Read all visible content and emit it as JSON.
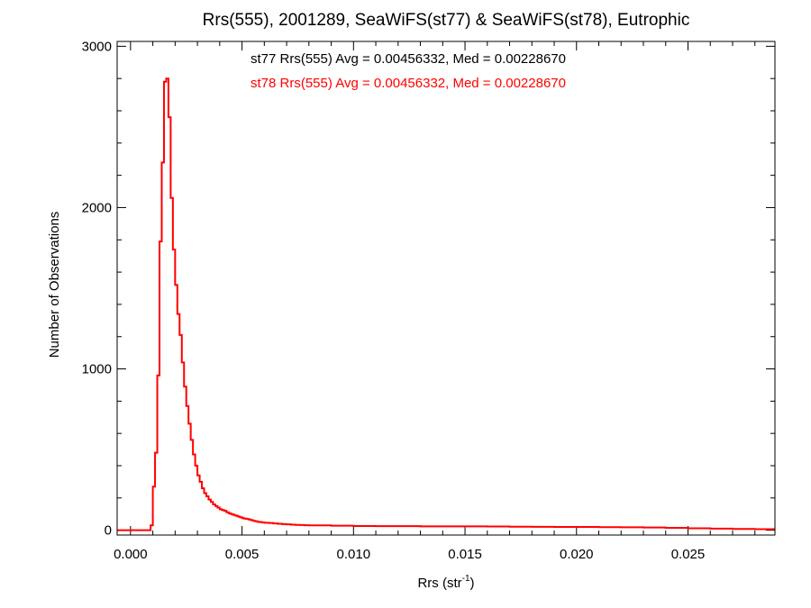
{
  "chart_data": {
    "type": "line",
    "title": "Rrs(555), 2001289, SeaWiFS(st77) & SeaWiFS(st78), Eutrophic",
    "xlabel_main": "Rrs (str",
    "xlabel_sup": "-1",
    "xlabel_close": ")",
    "ylabel": "Number of Observations",
    "xlim": [
      -0.0006,
      0.0289
    ],
    "ylim": [
      -30,
      3030
    ],
    "x_ticks": [
      {
        "value": 0.0,
        "label": "0.000"
      },
      {
        "value": 0.005,
        "label": "0.005"
      },
      {
        "value": 0.01,
        "label": "0.010"
      },
      {
        "value": 0.015,
        "label": "0.015"
      },
      {
        "value": 0.02,
        "label": "0.020"
      },
      {
        "value": 0.025,
        "label": "0.025"
      }
    ],
    "y_ticks": [
      {
        "value": 0,
        "label": "0"
      },
      {
        "value": 1000,
        "label": "1000"
      },
      {
        "value": 2000,
        "label": "2000"
      },
      {
        "value": 3000,
        "label": "3000"
      }
    ],
    "x_minor_step": 0.001,
    "y_minor_step": 200,
    "legend": [
      {
        "text": "st77 Rrs(555) Avg = 0.00456332, Med = 0.00228670",
        "color": "#000000"
      },
      {
        "text": "st78 Rrs(555) Avg = 0.00456332, Med = 0.00228670",
        "color": "#ff0000"
      }
    ],
    "series": [
      {
        "color": "#ff0000",
        "bin_width": 0.0001,
        "x": [
          0.0009,
          0.001,
          0.0011,
          0.0012,
          0.0013,
          0.0014,
          0.0015,
          0.0016,
          0.0017,
          0.0018,
          0.0019,
          0.002,
          0.0021,
          0.0022,
          0.0023,
          0.0024,
          0.0025,
          0.0026,
          0.0027,
          0.0028,
          0.0029,
          0.003,
          0.0031,
          0.0032,
          0.0033,
          0.0034,
          0.0035,
          0.0036,
          0.0037,
          0.0038,
          0.0039,
          0.004,
          0.0041,
          0.0042,
          0.0043,
          0.0044,
          0.0045,
          0.0046,
          0.0047,
          0.0048,
          0.0049,
          0.005,
          0.0051,
          0.0052,
          0.0053,
          0.0054,
          0.0055,
          0.0056,
          0.0057,
          0.0058,
          0.0059,
          0.006,
          0.0062,
          0.0064,
          0.0066,
          0.0068,
          0.007,
          0.0072,
          0.0074,
          0.0076,
          0.0078,
          0.008,
          0.0085,
          0.009,
          0.01,
          0.011,
          0.012,
          0.013,
          0.014,
          0.015,
          0.016,
          0.017,
          0.018,
          0.019,
          0.02,
          0.021,
          0.022,
          0.023,
          0.024,
          0.025,
          0.026,
          0.027,
          0.028
        ],
        "y": [
          30,
          270,
          480,
          960,
          1790,
          2280,
          2780,
          2800,
          2560,
          2060,
          1740,
          1520,
          1340,
          1210,
          1040,
          890,
          770,
          660,
          560,
          470,
          400,
          340,
          300,
          260,
          230,
          210,
          190,
          175,
          160,
          150,
          140,
          130,
          125,
          120,
          112,
          105,
          100,
          95,
          90,
          85,
          80,
          75,
          72,
          70,
          66,
          62,
          58,
          55,
          52,
          50,
          48,
          46,
          45,
          42,
          40,
          38,
          36,
          34,
          33,
          32,
          31,
          30,
          30,
          28,
          26,
          25,
          25,
          24,
          24,
          24,
          23,
          22,
          21,
          20,
          20,
          19,
          18,
          17,
          15,
          12,
          10,
          8,
          6
        ]
      }
    ]
  }
}
